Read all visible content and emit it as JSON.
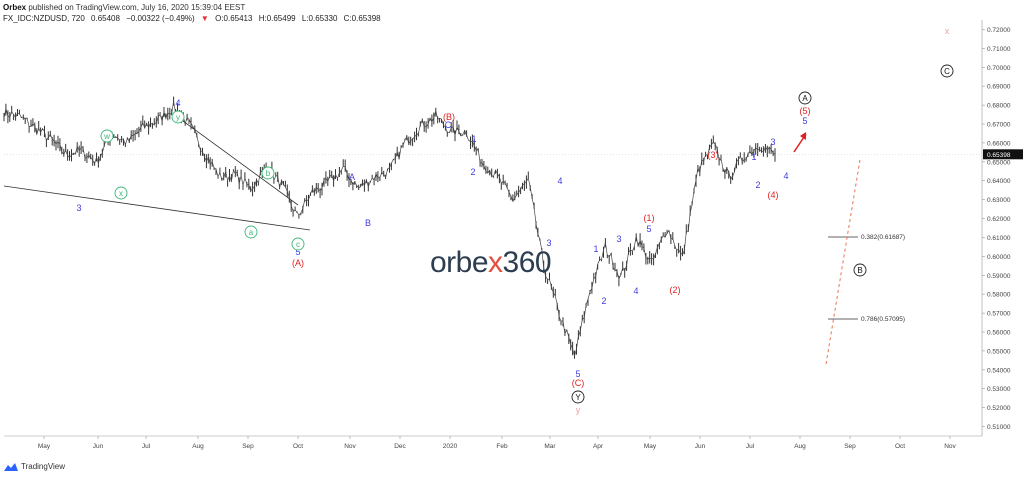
{
  "header": {
    "publisher_line": "Orbex published on TradingView.com, July 16, 2020 15:39:04 EEST",
    "publisher_name": "Orbex",
    "symbol": "FX_IDC:NZDUSD, 720",
    "last": "0.65408",
    "change": "−0.00322 (−0.49%)",
    "open": "O:0.65413",
    "high": "H:0.65499",
    "low": "L:0.65330",
    "close": "C:0.65398"
  },
  "watermark": {
    "text_a": "orbe",
    "text_x": "x",
    "text_b": "360"
  },
  "footer": {
    "brand": "TradingView"
  },
  "chart_data": {
    "type": "line",
    "title": "",
    "xlabel": "",
    "ylabel": "",
    "x_ticks": [
      "May",
      "Jun",
      "Jul",
      "Aug",
      "Sep",
      "Oct",
      "Nov",
      "Dec",
      "2020",
      "Feb",
      "Mar",
      "Apr",
      "May",
      "Jun",
      "Jul",
      "Aug",
      "Sep",
      "Oct",
      "Nov"
    ],
    "y_ticks": [
      "0.72000",
      "0.71000",
      "0.70000",
      "0.69000",
      "0.68000",
      "0.67000",
      "0.66000",
      "0.65000",
      "0.64000",
      "0.63000",
      "0.62000",
      "0.61000",
      "0.60000",
      "0.59000",
      "0.58000",
      "0.57000",
      "0.56000",
      "0.55000",
      "0.54000",
      "0.53000",
      "0.52000",
      "0.51000"
    ],
    "ylim": [
      0.505,
      0.725
    ],
    "last_price_label": "0.65398",
    "series": [
      {
        "values_by_month": [
          [
            "Apr 2019",
            0.676
          ],
          [
            "Apr 2019",
            0.674
          ],
          [
            "May",
            0.668
          ],
          [
            "May",
            0.662
          ],
          [
            "May",
            0.654
          ],
          [
            "Jun",
            0.656
          ],
          [
            "Jun",
            0.65
          ],
          [
            "Jun",
            0.665
          ],
          [
            "Jun",
            0.66
          ],
          [
            "Jul",
            0.668
          ],
          [
            "Jul",
            0.672
          ],
          [
            "Jul",
            0.679
          ],
          [
            "Jul",
            0.67
          ],
          [
            "Aug",
            0.655
          ],
          [
            "Aug",
            0.642
          ],
          [
            "Aug",
            0.643
          ],
          [
            "Sep",
            0.636
          ],
          [
            "Sep",
            0.647
          ],
          [
            "Sep",
            0.638
          ],
          [
            "Oct",
            0.621
          ],
          [
            "Oct",
            0.634
          ],
          [
            "Oct",
            0.639
          ],
          [
            "Nov",
            0.646
          ],
          [
            "Nov",
            0.636
          ],
          [
            "Nov",
            0.642
          ],
          [
            "Dec",
            0.645
          ],
          [
            "Dec",
            0.66
          ],
          [
            "Dec",
            0.669
          ],
          [
            "Jan 2020",
            0.674
          ],
          [
            "Jan",
            0.666
          ],
          [
            "Jan",
            0.666
          ],
          [
            "Feb",
            0.65
          ],
          [
            "Feb",
            0.642
          ],
          [
            "Feb",
            0.63
          ],
          [
            "Mar",
            0.64
          ],
          [
            "Mar",
            0.595
          ],
          [
            "Mar",
            0.57
          ],
          [
            "Mar",
            0.547
          ],
          [
            "Apr",
            0.582
          ],
          [
            "Apr",
            0.605
          ],
          [
            "Apr",
            0.589
          ],
          [
            "Apr",
            0.61
          ],
          [
            "May",
            0.596
          ],
          [
            "May",
            0.615
          ],
          [
            "May",
            0.599
          ],
          [
            "Jun",
            0.645
          ],
          [
            "Jun",
            0.659
          ],
          [
            "Jun",
            0.642
          ],
          [
            "Jul",
            0.653
          ],
          [
            "Jul",
            0.659
          ],
          [
            "Jul",
            0.654
          ]
        ]
      }
    ],
    "annotations": {
      "wave_labels_blue": [
        "3",
        "4",
        "5",
        "A",
        "B",
        "C",
        "1",
        "2",
        "3",
        "4",
        "5",
        "1",
        "2",
        "3",
        "4",
        "5",
        "1",
        "2",
        "3",
        "4",
        "5"
      ],
      "wave_labels_red": [
        "(A)",
        "(B)",
        "(C)",
        "(1)",
        "(2)",
        "(3)",
        "(4)",
        "(5)"
      ],
      "wave_labels_green": [
        "w",
        "x",
        "y",
        "a",
        "b",
        "c"
      ],
      "circled_labels": [
        "A",
        "B",
        "C",
        "Y"
      ],
      "pink_labels": [
        "y",
        "x"
      ],
      "fib_levels": [
        {
          "ratio": "0.382",
          "label": "0.382(0.61687)",
          "value": 0.61687
        },
        {
          "ratio": "0.786",
          "label": "0.786(0.57095)",
          "value": 0.57095
        }
      ]
    }
  }
}
